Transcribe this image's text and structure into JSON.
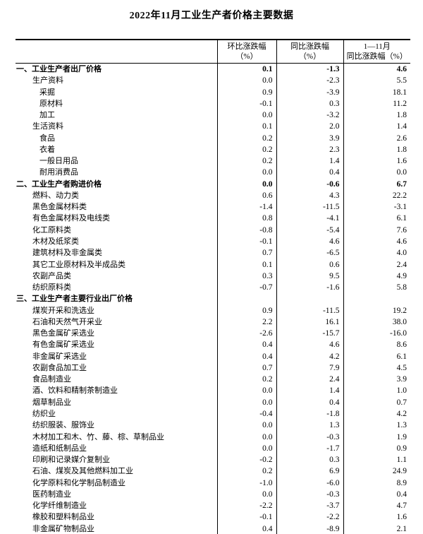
{
  "title": "2022年11月工业生产者价格主要数据",
  "table": {
    "columns": [
      {
        "lines": [
          "环比涨跌幅",
          "（%）"
        ]
      },
      {
        "lines": [
          "同比涨跌幅",
          "（%）"
        ]
      },
      {
        "lines": [
          "1—11月",
          "同比涨跌幅（%）"
        ]
      }
    ],
    "rows": [
      {
        "label": "一、工业生产者出厂价格",
        "level": 0,
        "bold": true,
        "values": [
          "0.1",
          "-1.3",
          "4.6"
        ]
      },
      {
        "label": "生产资料",
        "level": 1,
        "bold": false,
        "values": [
          "0.0",
          "-2.3",
          "5.5"
        ]
      },
      {
        "label": "采掘",
        "level": 2,
        "bold": false,
        "values": [
          "0.9",
          "-3.9",
          "18.1"
        ]
      },
      {
        "label": "原材料",
        "level": 2,
        "bold": false,
        "values": [
          "-0.1",
          "0.3",
          "11.2"
        ]
      },
      {
        "label": "加工",
        "level": 2,
        "bold": false,
        "values": [
          "0.0",
          "-3.2",
          "1.8"
        ]
      },
      {
        "label": "生活资料",
        "level": 1,
        "bold": false,
        "values": [
          "0.1",
          "2.0",
          "1.4"
        ]
      },
      {
        "label": "食品",
        "level": 2,
        "bold": false,
        "values": [
          "0.2",
          "3.9",
          "2.6"
        ]
      },
      {
        "label": "衣着",
        "level": 2,
        "bold": false,
        "values": [
          "0.2",
          "2.3",
          "1.8"
        ]
      },
      {
        "label": "一般日用品",
        "level": 2,
        "bold": false,
        "values": [
          "0.2",
          "1.4",
          "1.6"
        ]
      },
      {
        "label": "耐用消费品",
        "level": 2,
        "bold": false,
        "values": [
          "0.0",
          "0.4",
          "0.0"
        ]
      },
      {
        "label": "二、工业生产者购进价格",
        "level": 0,
        "bold": true,
        "values": [
          "0.0",
          "-0.6",
          "6.7"
        ]
      },
      {
        "label": "燃料、动力类",
        "level": 1,
        "bold": false,
        "values": [
          "0.6",
          "4.3",
          "22.2"
        ]
      },
      {
        "label": "黑色金属材料类",
        "level": 1,
        "bold": false,
        "values": [
          "-1.4",
          "-11.5",
          "-3.1"
        ]
      },
      {
        "label": "有色金属材料及电线类",
        "level": 1,
        "bold": false,
        "values": [
          "0.8",
          "-4.1",
          "6.1"
        ]
      },
      {
        "label": "化工原料类",
        "level": 1,
        "bold": false,
        "values": [
          "-0.8",
          "-5.4",
          "7.6"
        ]
      },
      {
        "label": "木材及纸浆类",
        "level": 1,
        "bold": false,
        "values": [
          "-0.1",
          "4.6",
          "4.6"
        ]
      },
      {
        "label": "建筑材料及非金属类",
        "level": 1,
        "bold": false,
        "values": [
          "0.7",
          "-6.5",
          "4.0"
        ]
      },
      {
        "label": "其它工业原材料及半成品类",
        "level": 1,
        "bold": false,
        "values": [
          "0.1",
          "0.6",
          "2.4"
        ]
      },
      {
        "label": "农副产品类",
        "level": 1,
        "bold": false,
        "values": [
          "0.3",
          "9.5",
          "4.9"
        ]
      },
      {
        "label": "纺织原料类",
        "level": 1,
        "bold": false,
        "values": [
          "-0.7",
          "-1.6",
          "5.8"
        ]
      },
      {
        "label": "三、工业生产者主要行业出厂价格",
        "level": 0,
        "bold": true,
        "values": [
          "",
          "",
          ""
        ]
      },
      {
        "label": "煤炭开采和洗选业",
        "level": 1,
        "bold": false,
        "values": [
          "0.9",
          "-11.5",
          "19.2"
        ]
      },
      {
        "label": "石油和天然气开采业",
        "level": 1,
        "bold": false,
        "values": [
          "2.2",
          "16.1",
          "38.0"
        ]
      },
      {
        "label": "黑色金属矿采选业",
        "level": 1,
        "bold": false,
        "values": [
          "-2.6",
          "-15.7",
          "-16.0"
        ]
      },
      {
        "label": "有色金属矿采选业",
        "level": 1,
        "bold": false,
        "values": [
          "0.4",
          "4.6",
          "8.6"
        ]
      },
      {
        "label": "非金属矿采选业",
        "level": 1,
        "bold": false,
        "values": [
          "0.4",
          "4.2",
          "6.1"
        ]
      },
      {
        "label": "农副食品加工业",
        "level": 1,
        "bold": false,
        "values": [
          "0.7",
          "7.9",
          "4.5"
        ]
      },
      {
        "label": "食品制造业",
        "level": 1,
        "bold": false,
        "values": [
          "0.2",
          "2.4",
          "3.9"
        ]
      },
      {
        "label": "酒、饮料和精制茶制造业",
        "level": 1,
        "bold": false,
        "values": [
          "0.0",
          "1.4",
          "1.0"
        ]
      },
      {
        "label": "烟草制品业",
        "level": 1,
        "bold": false,
        "values": [
          "0.0",
          "0.4",
          "0.7"
        ]
      },
      {
        "label": "纺织业",
        "level": 1,
        "bold": false,
        "values": [
          "-0.4",
          "-1.8",
          "4.2"
        ]
      },
      {
        "label": "纺织服装、服饰业",
        "level": 1,
        "bold": false,
        "values": [
          "0.0",
          "1.3",
          "1.3"
        ]
      },
      {
        "label": "木材加工和木、竹、藤、棕、草制品业",
        "level": 1,
        "bold": false,
        "values": [
          "0.0",
          "-0.3",
          "1.9"
        ]
      },
      {
        "label": "造纸和纸制品业",
        "level": 1,
        "bold": false,
        "values": [
          "0.0",
          "-1.7",
          "0.9"
        ]
      },
      {
        "label": "印刷和记录媒介复制业",
        "level": 1,
        "bold": false,
        "values": [
          "-0.2",
          "0.3",
          "1.1"
        ]
      },
      {
        "label": "石油、煤炭及其他燃料加工业",
        "level": 1,
        "bold": false,
        "values": [
          "0.2",
          "6.9",
          "24.9"
        ]
      },
      {
        "label": "化学原料和化学制品制造业",
        "level": 1,
        "bold": false,
        "values": [
          "-1.0",
          "-6.0",
          "8.9"
        ]
      },
      {
        "label": "医药制造业",
        "level": 1,
        "bold": false,
        "values": [
          "0.0",
          "-0.3",
          "0.4"
        ]
      },
      {
        "label": "化学纤维制造业",
        "level": 1,
        "bold": false,
        "values": [
          "-2.2",
          "-3.7",
          "4.7"
        ]
      },
      {
        "label": "橡胶和塑料制品业",
        "level": 1,
        "bold": false,
        "values": [
          "-0.1",
          "-2.2",
          "1.6"
        ]
      },
      {
        "label": "非金属矿物制品业",
        "level": 1,
        "bold": false,
        "values": [
          "0.4",
          "-8.9",
          "2.1"
        ]
      }
    ]
  }
}
